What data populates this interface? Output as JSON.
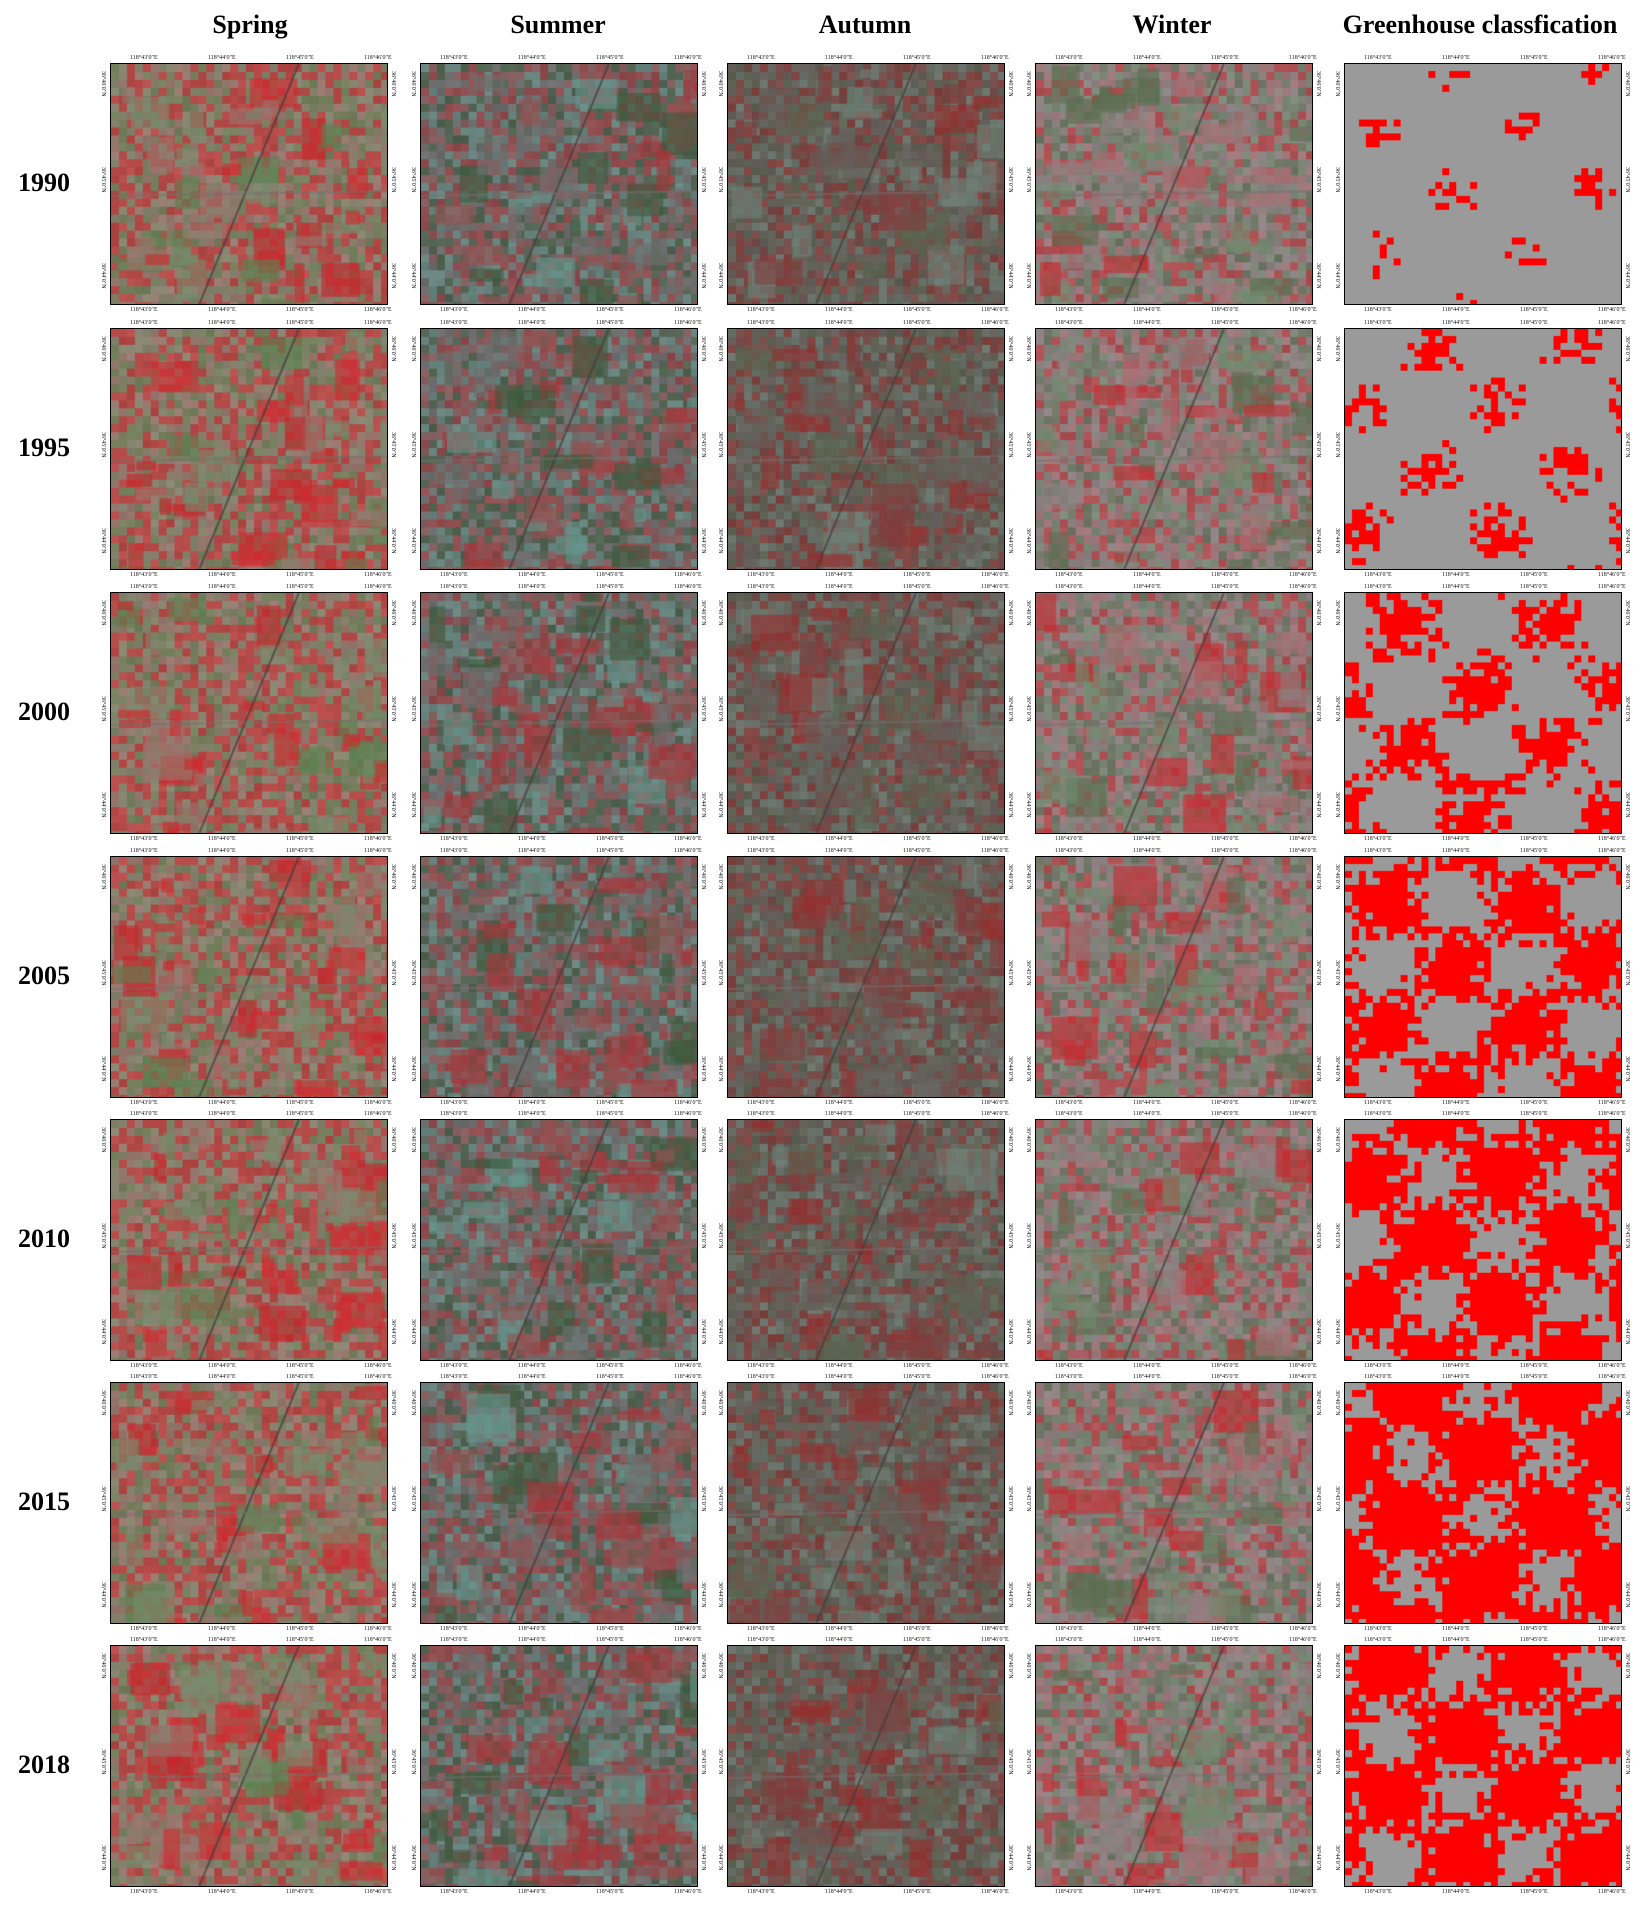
{
  "columns": [
    "Spring",
    "Summer",
    "Autumn",
    "Winter",
    "Greenhouse classfication"
  ],
  "years": [
    "1990",
    "1995",
    "2000",
    "2005",
    "2010",
    "2015",
    "2018"
  ],
  "map_ticks": {
    "longitude": [
      "118°43′0″E",
      "118°44′0″E",
      "118°45′0″E",
      "118°46′0″E"
    ],
    "latitude": [
      "36°46′0″N",
      "36°45′0″N",
      "36°44′0″N"
    ]
  },
  "colors": {
    "vegetation_red": "#d7262b",
    "greenhouse_red": "#ff0000",
    "background_gray": "#9a9a9a"
  },
  "greenhouse_fraction": [
    0.18,
    0.3,
    0.4,
    0.5,
    0.55,
    0.62,
    0.56
  ]
}
